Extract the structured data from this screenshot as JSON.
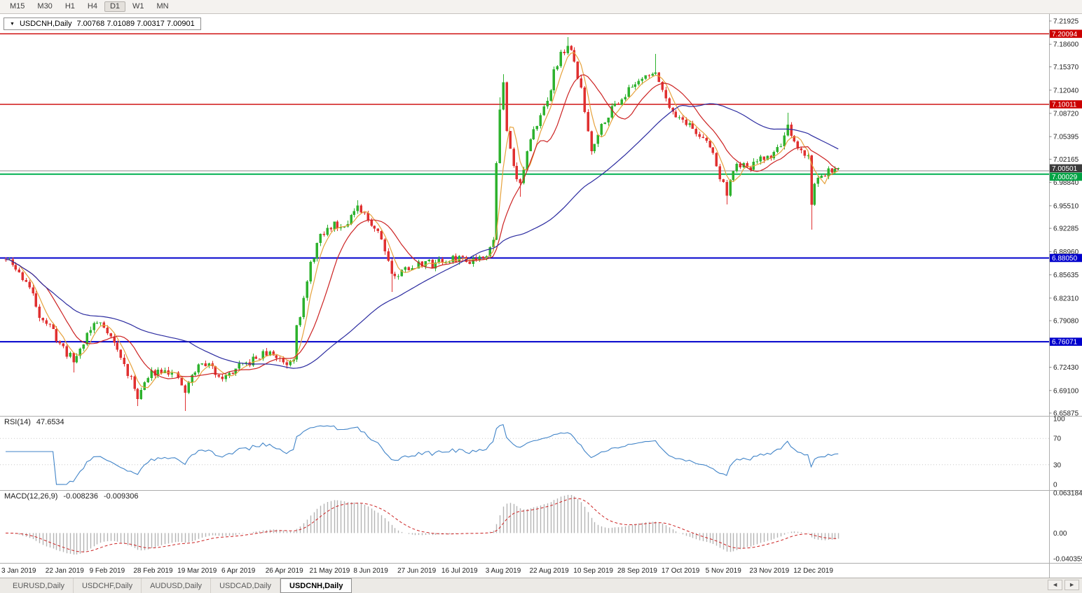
{
  "toolbar": {
    "timeframes": [
      "M15",
      "M30",
      "H1",
      "H4",
      "D1",
      "W1",
      "MN"
    ],
    "active": "D1"
  },
  "chart": {
    "dropdown_icon": "▼",
    "symbol": "USDCNH,Daily",
    "ohlc": "7.00768 7.01089 7.00317 7.00901"
  },
  "price_axis": {
    "ticks": [
      "7.21925",
      "7.18600",
      "7.15370",
      "7.12040",
      "7.08720",
      "7.05395",
      "7.02165",
      "6.98840",
      "6.95510",
      "6.92285",
      "6.88960",
      "6.85635",
      "6.82310",
      "6.79080",
      "6.72430",
      "6.69100",
      "6.65875"
    ],
    "badges": [
      {
        "label": "7.20094",
        "bg": "#CC0000"
      },
      {
        "label": "7.10011",
        "bg": "#CC0000"
      },
      {
        "label": "7.00501",
        "bg": "#3C3C3C"
      },
      {
        "label": "7.00029",
        "bg": "#00A344"
      },
      {
        "label": "6.88050",
        "bg": "#0000CC"
      },
      {
        "label": "6.76071",
        "bg": "#0000CC"
      }
    ]
  },
  "rsi": {
    "name": "RSI(14)",
    "value": "47.6534",
    "scale_labels": [
      "100",
      "70",
      "30",
      "0"
    ],
    "levels": [
      70,
      30
    ]
  },
  "macd": {
    "name": "MACD(12,26,9)",
    "value_macd": "-0.008236",
    "value_signal": "-0.009306",
    "scale_labels": [
      "0.063184",
      "0.00",
      "-0.040355"
    ]
  },
  "time_axis": {
    "labels": [
      "3 Jan 2019",
      "22 Jan 2019",
      "9 Feb 2019",
      "28 Feb 2019",
      "19 Mar 2019",
      "6 Apr 2019",
      "26 Apr 2019",
      "21 May 2019",
      "8 Jun 2019",
      "27 Jun 2019",
      "16 Jul 2019",
      "3 Aug 2019",
      "22 Aug 2019",
      "10 Sep 2019",
      "28 Sep 2019",
      "17 Oct 2019",
      "5 Nov 2019",
      "23 Nov 2019",
      "12 Dec 2019"
    ]
  },
  "tabs": {
    "items": [
      {
        "label": "EURUSD,Daily",
        "active": false
      },
      {
        "label": "USDCHF,Daily",
        "active": false
      },
      {
        "label": "AUDUSD,Daily",
        "active": false
      },
      {
        "label": "USDCAD,Daily",
        "active": false
      },
      {
        "label": "USDCNH,Daily",
        "active": true
      }
    ],
    "scroll_left_icon": "◄",
    "scroll_right_icon": "►"
  },
  "colors": {
    "candle_up": "#2DB22D",
    "candle_down": "#E03030",
    "ma_fast": "#E6A23C",
    "ma_mid": "#CC2222",
    "ma_slow": "#2B2BA0",
    "rsi_line": "#4184C8",
    "rsi_level": "#C8C8C8",
    "macd_hist": "#B4B4B4",
    "macd_signal": "#CC2222",
    "current_price_line": "#8A8A8A",
    "axis_text": "#1F1F1F",
    "separator": "#ADADAD"
  },
  "chart_data": {
    "type": "candlestick",
    "title": "USDCNH,Daily",
    "y_range": [
      6.65875,
      7.21925
    ],
    "candle_count": 247,
    "candles_per_label": 13,
    "seed": 11,
    "close_jitter": 0.012,
    "wick_jitter": 0.005,
    "anchors": [
      [
        0,
        6.878
      ],
      [
        2,
        6.87
      ],
      [
        4,
        6.858
      ],
      [
        6,
        6.848
      ],
      [
        8,
        6.826
      ],
      [
        10,
        6.8
      ],
      [
        12,
        6.788
      ],
      [
        14,
        6.775
      ],
      [
        16,
        6.758
      ],
      [
        18,
        6.745
      ],
      [
        20,
        6.733
      ],
      [
        22,
        6.75
      ],
      [
        24,
        6.772
      ],
      [
        26,
        6.786
      ],
      [
        28,
        6.788
      ],
      [
        30,
        6.778
      ],
      [
        32,
        6.758
      ],
      [
        34,
        6.738
      ],
      [
        36,
        6.716
      ],
      [
        38,
        6.695
      ],
      [
        39,
        6.684
      ],
      [
        41,
        6.7
      ],
      [
        43,
        6.716
      ],
      [
        45,
        6.72
      ],
      [
        47,
        6.724
      ],
      [
        49,
        6.714
      ],
      [
        51,
        6.708
      ],
      [
        53,
        6.688
      ],
      [
        55,
        6.712
      ],
      [
        57,
        6.726
      ],
      [
        59,
        6.73
      ],
      [
        61,
        6.722
      ],
      [
        63,
        6.714
      ],
      [
        65,
        6.71
      ],
      [
        67,
        6.718
      ],
      [
        69,
        6.724
      ],
      [
        71,
        6.728
      ],
      [
        73,
        6.734
      ],
      [
        75,
        6.74
      ],
      [
        77,
        6.744
      ],
      [
        79,
        6.742
      ],
      [
        81,
        6.736
      ],
      [
        83,
        6.73
      ],
      [
        85,
        6.74
      ],
      [
        86,
        6.79
      ],
      [
        87,
        6.8
      ],
      [
        88,
        6.82
      ],
      [
        89,
        6.845
      ],
      [
        90,
        6.87
      ],
      [
        91,
        6.885
      ],
      [
        92,
        6.9
      ],
      [
        93,
        6.91
      ],
      [
        95,
        6.92
      ],
      [
        97,
        6.93
      ],
      [
        99,
        6.925
      ],
      [
        101,
        6.935
      ],
      [
        103,
        6.945
      ],
      [
        104,
        6.95
      ],
      [
        106,
        6.94
      ],
      [
        108,
        6.93
      ],
      [
        110,
        6.92
      ],
      [
        112,
        6.895
      ],
      [
        114,
        6.86
      ],
      [
        116,
        6.852
      ],
      [
        118,
        6.872
      ],
      [
        120,
        6.862
      ],
      [
        122,
        6.872
      ],
      [
        124,
        6.876
      ],
      [
        126,
        6.87
      ],
      [
        128,
        6.88
      ],
      [
        130,
        6.873
      ],
      [
        132,
        6.878
      ],
      [
        134,
        6.882
      ],
      [
        136,
        6.876
      ],
      [
        138,
        6.88
      ],
      [
        140,
        6.882
      ],
      [
        142,
        6.888
      ],
      [
        144,
        6.905
      ],
      [
        145,
        7.02
      ],
      [
        146,
        7.09
      ],
      [
        147,
        7.13
      ],
      [
        148,
        7.06
      ],
      [
        149,
        7.04
      ],
      [
        151,
        6.995
      ],
      [
        152,
        6.985
      ],
      [
        154,
        7.03
      ],
      [
        156,
        7.06
      ],
      [
        158,
        7.09
      ],
      [
        160,
        7.1
      ],
      [
        162,
        7.15
      ],
      [
        164,
        7.17
      ],
      [
        166,
        7.185
      ],
      [
        168,
        7.16
      ],
      [
        170,
        7.12
      ],
      [
        171,
        7.09
      ],
      [
        173,
        7.035
      ],
      [
        175,
        7.06
      ],
      [
        177,
        7.08
      ],
      [
        180,
        7.1
      ],
      [
        183,
        7.115
      ],
      [
        186,
        7.13
      ],
      [
        189,
        7.145
      ],
      [
        191,
        7.138
      ],
      [
        192,
        7.15
      ],
      [
        194,
        7.12
      ],
      [
        196,
        7.1
      ],
      [
        198,
        7.085
      ],
      [
        201,
        7.075
      ],
      [
        204,
        7.06
      ],
      [
        207,
        7.045
      ],
      [
        209,
        7.03
      ],
      [
        211,
        6.995
      ],
      [
        213,
        6.975
      ],
      [
        215,
        7.005
      ],
      [
        217,
        7.015
      ],
      [
        219,
        7.005
      ],
      [
        221,
        7.015
      ],
      [
        223,
        7.02
      ],
      [
        225,
        7.025
      ],
      [
        227,
        7.03
      ],
      [
        229,
        7.045
      ],
      [
        231,
        7.065
      ],
      [
        232,
        7.05
      ],
      [
        234,
        7.035
      ],
      [
        236,
        7.03
      ],
      [
        237,
        7.025
      ],
      [
        238,
        6.96
      ],
      [
        239,
        6.985
      ],
      [
        241,
        7.0
      ],
      [
        243,
        7.005
      ],
      [
        245,
        7.002
      ],
      [
        246,
        7.009
      ]
    ],
    "wick_overrides": [
      {
        "i": 20,
        "l": 6.717
      },
      {
        "i": 39,
        "l": 6.669
      },
      {
        "i": 53,
        "l": 6.662
      },
      {
        "i": 104,
        "h": 6.963
      },
      {
        "i": 114,
        "l": 6.832
      },
      {
        "i": 145,
        "l": 6.93
      },
      {
        "i": 146,
        "h": 7.11
      },
      {
        "i": 147,
        "h": 7.143
      },
      {
        "i": 152,
        "l": 6.968
      },
      {
        "i": 166,
        "h": 7.196
      },
      {
        "i": 192,
        "h": 7.172
      },
      {
        "i": 213,
        "l": 6.957
      },
      {
        "i": 231,
        "h": 7.088
      },
      {
        "i": 238,
        "l": 6.921
      }
    ],
    "horizontal_lines": [
      {
        "price": 7.20094,
        "color": "#CC0000",
        "width": 1.4
      },
      {
        "price": 7.10011,
        "color": "#CC0000",
        "width": 1.4
      },
      {
        "price": 7.00029,
        "color": "#00B050",
        "width": 2
      },
      {
        "price": 6.8805,
        "color": "#0000CC",
        "width": 2
      },
      {
        "price": 6.76071,
        "color": "#0000CC",
        "width": 2
      }
    ],
    "current_price": 7.00501,
    "moving_averages": [
      {
        "period": 5,
        "color": "#E6A23C",
        "name": "fast"
      },
      {
        "period": 13,
        "color": "#CC2222",
        "name": "mid"
      },
      {
        "period": 55,
        "color": "#2B2BA0",
        "name": "slow"
      }
    ],
    "indicators": {
      "rsi": {
        "period": 14,
        "current": 47.6534
      },
      "macd": {
        "fast": 12,
        "slow": 26,
        "signal": 9,
        "macd_value": -0.008236,
        "signal_value": -0.009306
      }
    }
  }
}
